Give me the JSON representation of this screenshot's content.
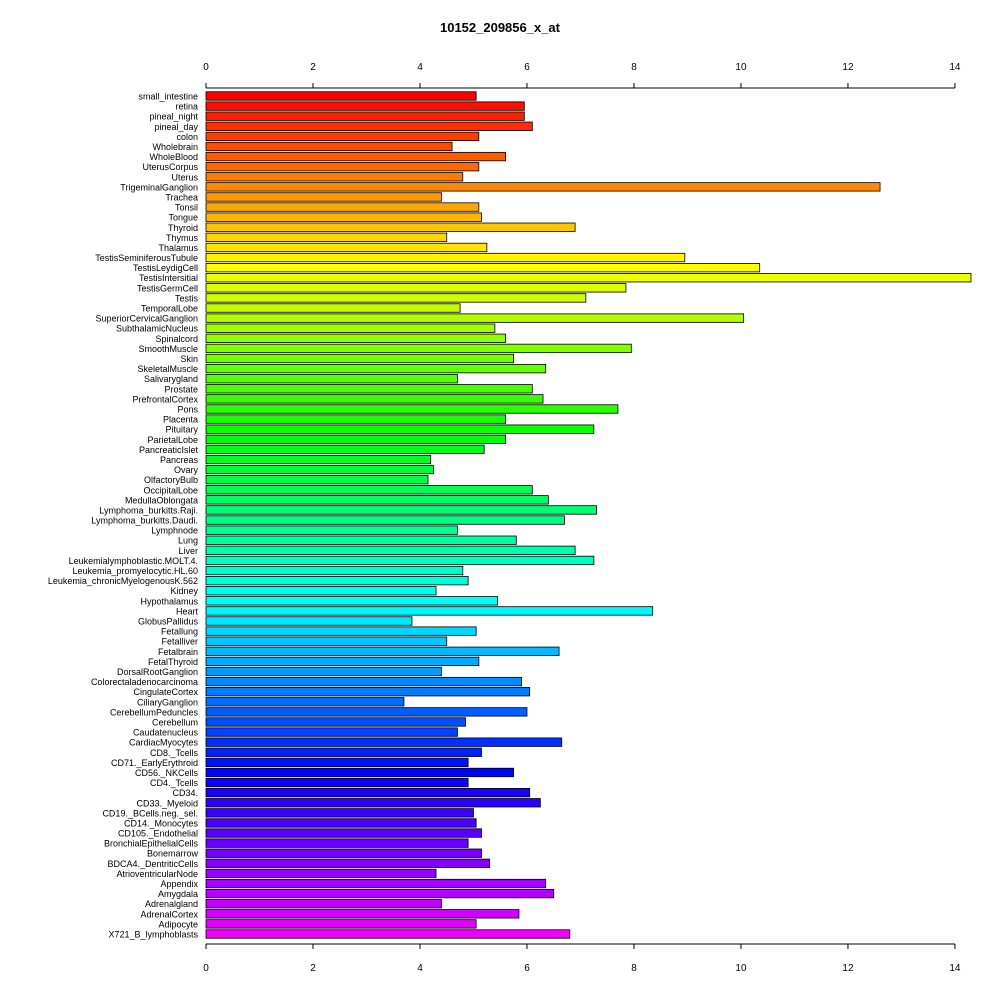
{
  "chart_data": {
    "type": "bar",
    "orientation": "horizontal",
    "title": "10152_209856_x_at",
    "xlim": [
      0,
      14.3
    ],
    "ticks": [
      0,
      2,
      4,
      6,
      8,
      10,
      12,
      14
    ],
    "tick_labels": [
      "0",
      "2",
      "4",
      "6",
      "8",
      "10",
      "12",
      "14"
    ],
    "bar_color_scheme": "rainbow",
    "categories": [
      "small_intestine",
      "retina",
      "pineal_night",
      "pineal_day",
      "colon",
      "Wholebrain",
      "WholeBlood",
      "UterusCorpus",
      "Uterus",
      "TrigeminalGanglion",
      "Trachea",
      "Tonsil",
      "Tongue",
      "Thyroid",
      "Thymus",
      "Thalamus",
      "TestisSeminiferousTubule",
      "TestisLeydigCell",
      "TestisIntersitial",
      "TestisGermCell",
      "Testis",
      "TemporalLobe",
      "SuperiorCervicalGanglion",
      "SubthalamicNucleus",
      "Spinalcord",
      "SmoothMuscle",
      "Skin",
      "SkeletalMuscle",
      "Salivarygland",
      "Prostate",
      "PrefrontalCortex",
      "Pons",
      "Placenta",
      "Pituitary",
      "ParietalLobe",
      "PancreaticIslet",
      "Pancreas",
      "Ovary",
      "OlfactoryBulb",
      "OccipitalLobe",
      "MedullaOblongata",
      "Lymphoma_burkitts.Raji.",
      "Lymphoma_burkitts.Daudi.",
      "Lymphnode",
      "Lung",
      "Liver",
      "Leukemialymphoblastic.MOLT.4.",
      "Leukemia_promyelocytic.HL.60",
      "Leukemia_chronicMyelogenousK.562",
      "Kidney",
      "Hypothalamus",
      "Heart",
      "GlobusPallidus",
      "Fetallung",
      "Fetalliver",
      "Fetalbrain",
      "FetalThyroid",
      "DorsalRootGanglion",
      "Colorectaladenocarcinoma",
      "CingulateCortex",
      "CiliaryGanglion",
      "CerebellumPeduncles",
      "Cerebellum",
      "Caudatenucleus",
      "CardiacMyocytes",
      "CD8._Tcells",
      "CD71._EarlyErythroid",
      "CD56._NKCells",
      "CD4._Tcells",
      "CD34.",
      "CD33._Myeloid",
      "CD19._BCells.neg._sel.",
      "CD14._Monocytes",
      "CD105._Endothelial",
      "BronchialEpithelialCells",
      "Bonemarrow",
      "BDCA4._DentriticCells",
      "AtrioventricularNode",
      "Appendix",
      "Amygdala",
      "Adrenalgland",
      "AdrenalCortex",
      "Adipocyte",
      "X721_B_lymphoblasts"
    ],
    "values": [
      5.05,
      5.95,
      5.95,
      6.1,
      5.1,
      4.6,
      5.6,
      5.1,
      4.8,
      12.6,
      4.4,
      5.1,
      5.15,
      6.9,
      4.5,
      5.25,
      8.95,
      10.35,
      14.3,
      7.85,
      7.1,
      4.75,
      10.05,
      5.4,
      5.6,
      7.95,
      5.75,
      6.35,
      4.7,
      6.1,
      6.3,
      7.7,
      5.6,
      7.25,
      5.6,
      5.2,
      4.2,
      4.25,
      4.15,
      6.1,
      6.4,
      7.3,
      6.7,
      4.7,
      5.8,
      6.9,
      7.25,
      4.8,
      4.9,
      4.3,
      5.45,
      8.35,
      3.85,
      5.05,
      4.5,
      6.6,
      5.1,
      4.4,
      5.9,
      6.05,
      3.7,
      6.0,
      4.85,
      4.7,
      6.65,
      5.15,
      4.9,
      5.75,
      4.9,
      6.05,
      6.25,
      5.0,
      5.05,
      5.15,
      4.9,
      5.15,
      5.3,
      4.3,
      6.35,
      6.5,
      4.4,
      5.85,
      5.05,
      6.8
    ]
  }
}
